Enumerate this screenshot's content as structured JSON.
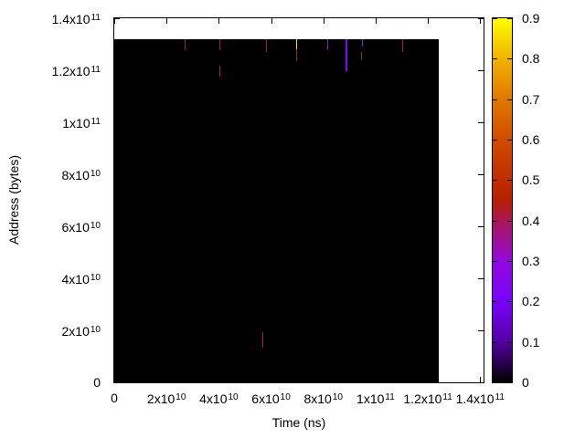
{
  "figure": {
    "xlabel": "Time (ns)",
    "ylabel": "Address (bytes)",
    "background": "#ffffff",
    "heatmap_background": "#000000",
    "x_ticks": [
      {
        "v": 0,
        "label": "0"
      },
      {
        "v": 20000000000.0,
        "label": "2x10^10"
      },
      {
        "v": 40000000000.0,
        "label": "4x10^10"
      },
      {
        "v": 60000000000.0,
        "label": "6x10^10"
      },
      {
        "v": 80000000000.0,
        "label": "8x10^10"
      },
      {
        "v": 100000000000.0,
        "label": "1x10^11"
      },
      {
        "v": 120000000000.0,
        "label": "1.2x10^11"
      },
      {
        "v": 140000000000.0,
        "label": "1.4x10^11"
      }
    ],
    "y_ticks": [
      {
        "v": 0,
        "label": "0"
      },
      {
        "v": 20000000000.0,
        "label": "2x10^10"
      },
      {
        "v": 40000000000.0,
        "label": "4x10^10"
      },
      {
        "v": 60000000000.0,
        "label": "6x10^10"
      },
      {
        "v": 80000000000.0,
        "label": "8x10^10"
      },
      {
        "v": 100000000000.0,
        "label": "1x10^11"
      },
      {
        "v": 120000000000.0,
        "label": "1.2x10^11"
      },
      {
        "v": 140000000000.0,
        "label": "1.4x10^11"
      }
    ],
    "colorbar": {
      "min": 0,
      "max": 0.9,
      "ticks": [
        {
          "v": 0,
          "label": "0"
        },
        {
          "v": 0.1,
          "label": "0.1"
        },
        {
          "v": 0.2,
          "label": "0.2"
        },
        {
          "v": 0.3,
          "label": "0.3"
        },
        {
          "v": 0.4,
          "label": "0.4"
        },
        {
          "v": 0.5,
          "label": "0.5"
        },
        {
          "v": 0.6,
          "label": "0.6"
        },
        {
          "v": 0.7,
          "label": "0.7"
        },
        {
          "v": 0.8,
          "label": "0.8"
        },
        {
          "v": 0.9,
          "label": "0.9"
        }
      ],
      "stops": [
        {
          "v": 0.0,
          "color": "#000000"
        },
        {
          "v": 0.1,
          "color": "#5500a4"
        },
        {
          "v": 0.2,
          "color": "#7803fb"
        },
        {
          "v": 0.3,
          "color": "#9309dd"
        },
        {
          "v": 0.4,
          "color": "#aa1657"
        },
        {
          "v": 0.45,
          "color": "#b42000"
        },
        {
          "v": 0.5,
          "color": "#be2c00"
        },
        {
          "v": 0.6,
          "color": "#d04c00"
        },
        {
          "v": 0.7,
          "color": "#e17800"
        },
        {
          "v": 0.8,
          "color": "#f0b300"
        },
        {
          "v": 0.9,
          "color": "#ffff00"
        }
      ]
    }
  },
  "chart_data": {
    "type": "heatmap",
    "title": "",
    "xlabel": "Time (ns)",
    "ylabel": "Address (bytes)",
    "xlim": [
      0,
      141300000000.0
    ],
    "ylim": [
      0,
      140000000000.0
    ],
    "colorbar_range": [
      0,
      0.9
    ],
    "grid": false,
    "legend_position": "colorbar-right",
    "background_value": 0,
    "data_extent": {
      "time_max": 124200000000.0,
      "address_max": 132100000000.0
    },
    "points": [
      {
        "t": 27100000000.0,
        "a0": 127750000000.0,
        "a1": 132100000000.0,
        "value": 0.44,
        "color": "#a02030",
        "w": 1
      },
      {
        "t": 40240000000.0,
        "a0": 127750000000.0,
        "a1": 132100000000.0,
        "value": 0.44,
        "color": "#a02030",
        "w": 1
      },
      {
        "t": 40340000000.0,
        "a0": 117630000000.0,
        "a1": 121710000000.0,
        "value": 0.44,
        "color": "#a52a35",
        "w": 1
      },
      {
        "t": 58250000000.0,
        "a0": 127100000000.0,
        "a1": 132100000000.0,
        "value": 0.43,
        "color": "#97203d",
        "w": 1
      },
      {
        "t": 69610000000.0,
        "a0": 128100000000.0,
        "a1": 132100000000.0,
        "value": 0.88,
        "color": "#f0e000",
        "w": 1
      },
      {
        "t": 69610000000.0,
        "a0": 123450000000.0,
        "a1": 128100000000.0,
        "value": 0.44,
        "color": "#a02030",
        "w": 1
      },
      {
        "t": 81600000000.0,
        "a0": 127750000000.0,
        "a1": 132100000000.0,
        "value": 0.28,
        "color": "#8a14e0",
        "w": 1
      },
      {
        "t": 88770000000.0,
        "a0": 119620000000.0,
        "a1": 132100000000.0,
        "value": 0.22,
        "color": "#7d0aff",
        "w": 2
      },
      {
        "t": 95040000000.0,
        "a0": 129150000000.0,
        "a1": 132100000000.0,
        "value": 0.28,
        "color": "#8a14e0",
        "w": 1
      },
      {
        "t": 94700000000.0,
        "a0": 124010000000.0,
        "a1": 126950000000.0,
        "value": 0.44,
        "color": "#a02030",
        "w": 1
      },
      {
        "t": 110270000000.0,
        "a0": 126950000000.0,
        "a1": 132100000000.0,
        "value": 0.45,
        "color": "#ab2028",
        "w": 1
      },
      {
        "t": 56720000000.0,
        "a0": 13370000000.0,
        "a1": 19197000000.0,
        "value": 0.41,
        "color": "#aa1657",
        "w": 1
      }
    ]
  }
}
